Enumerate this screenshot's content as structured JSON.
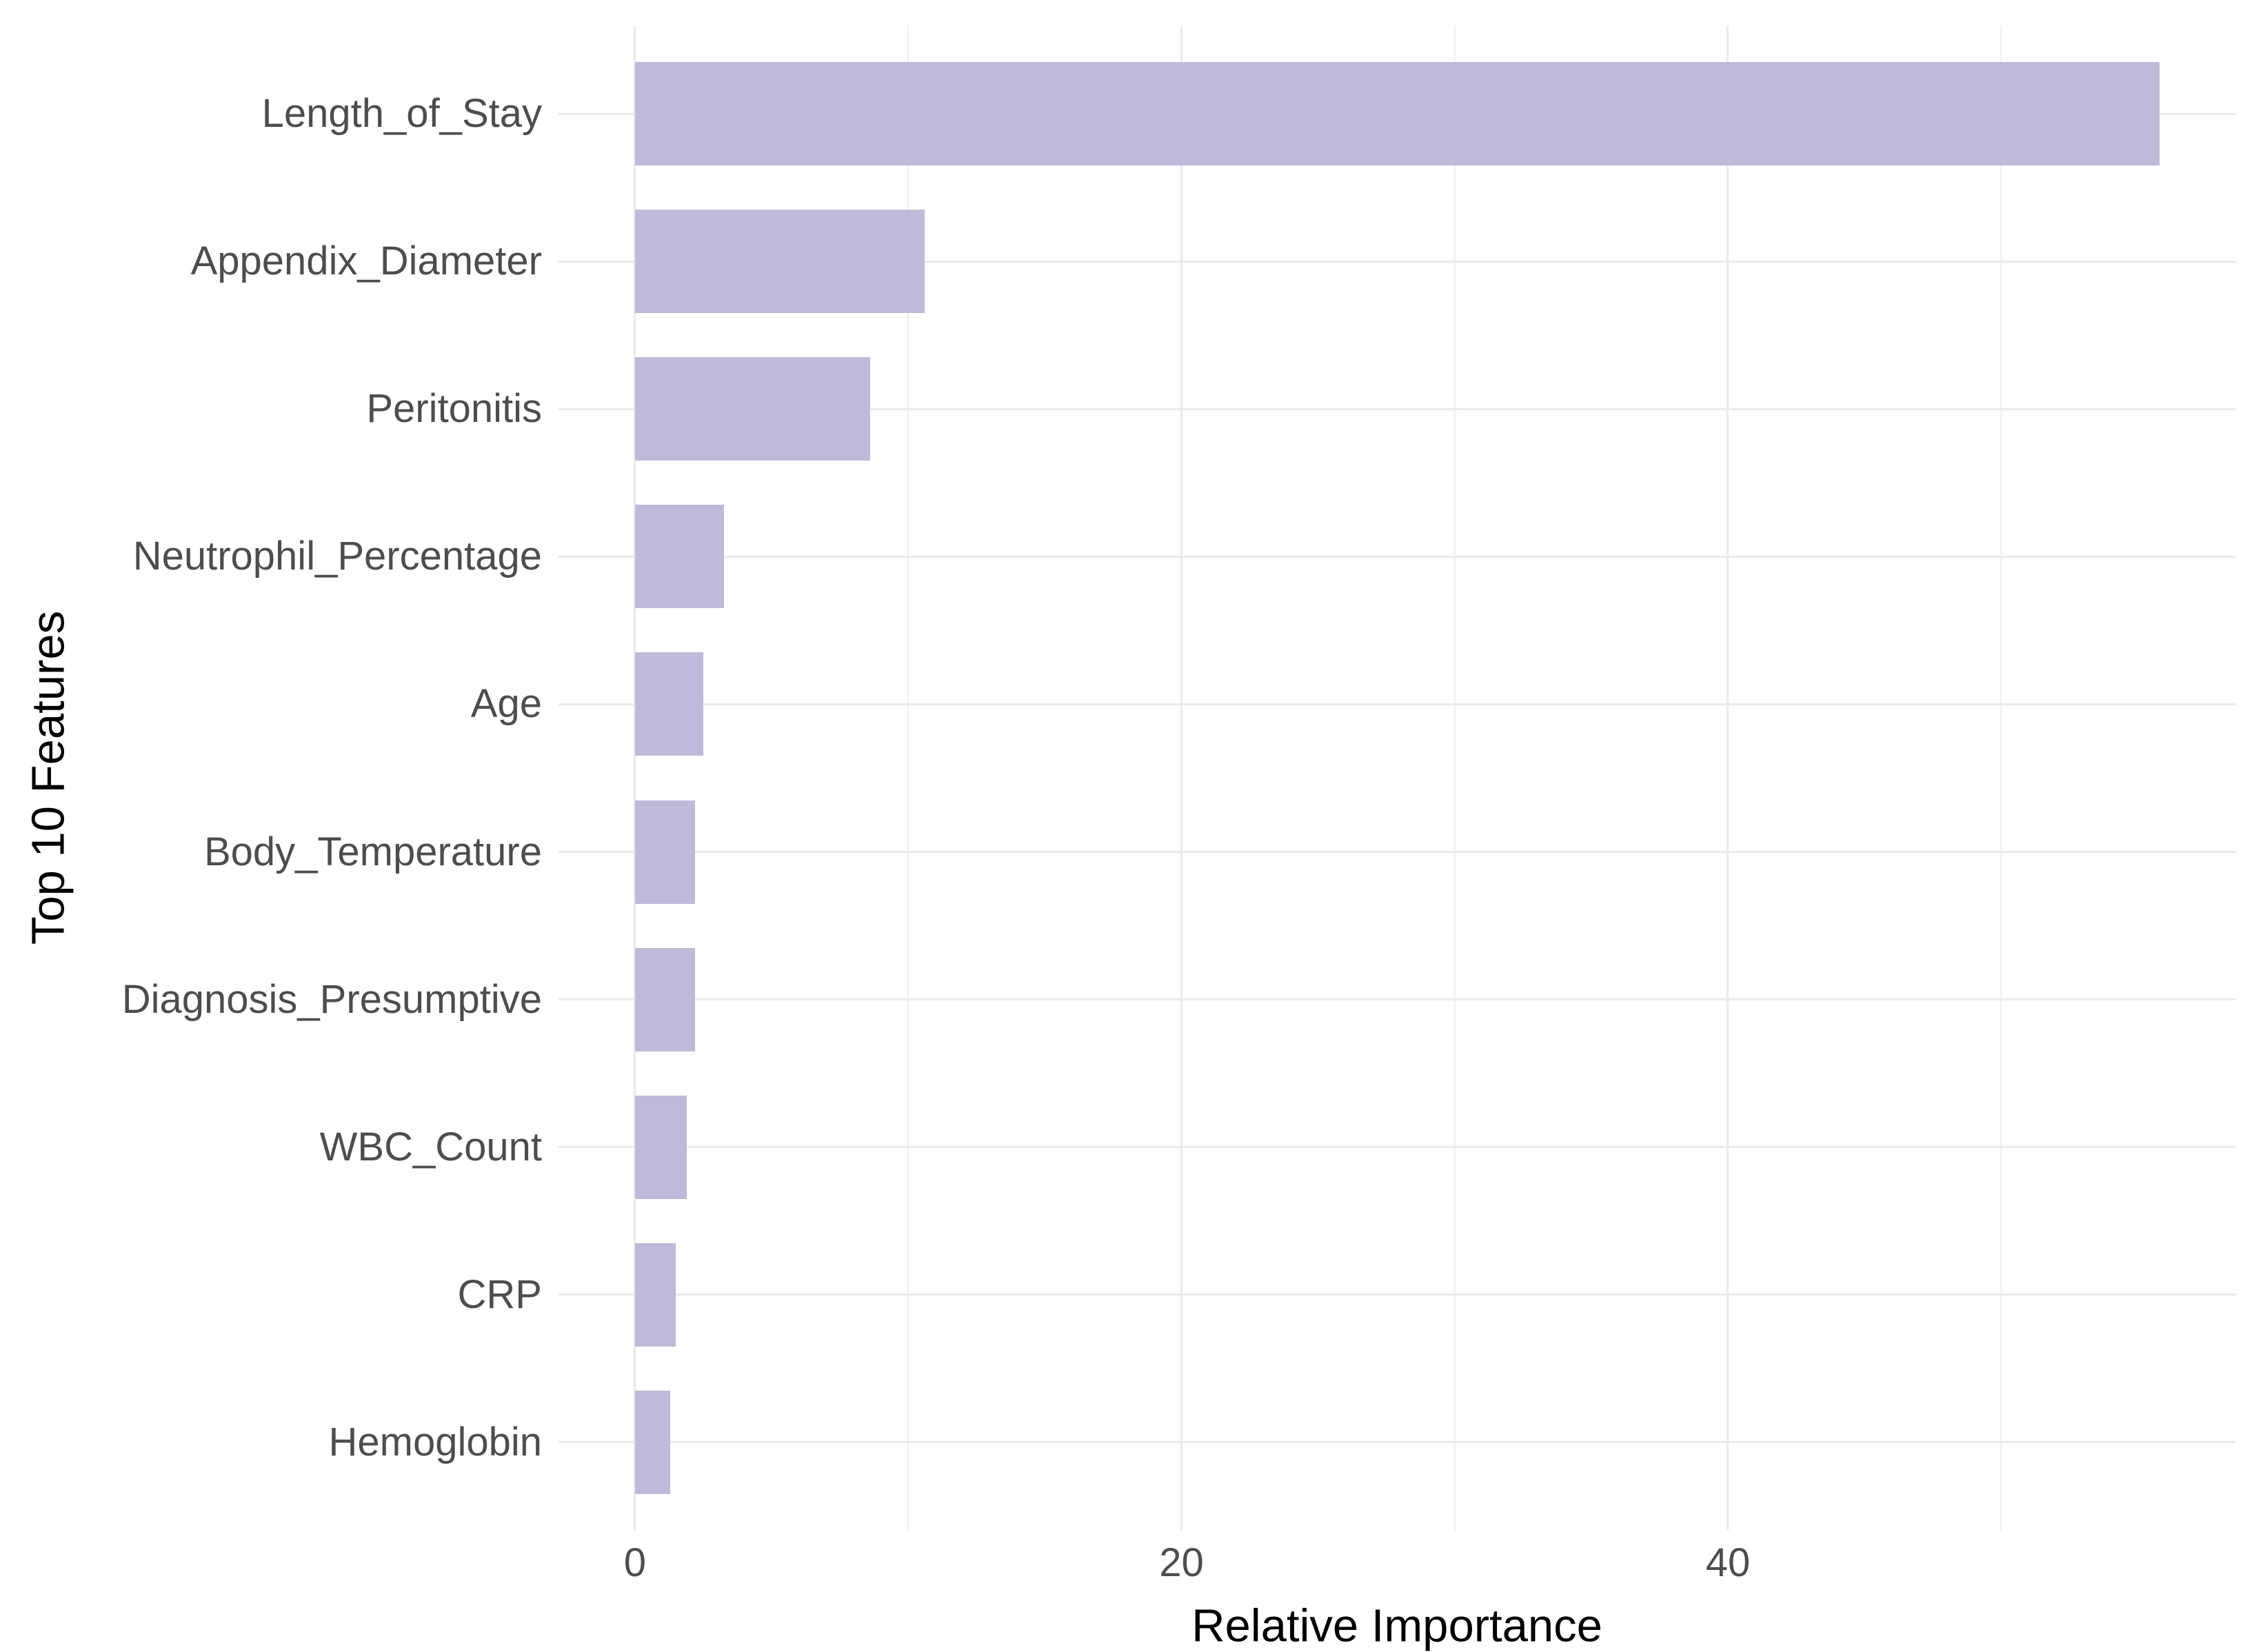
{
  "chart_data": {
    "type": "bar",
    "orientation": "horizontal",
    "title": "",
    "xlabel": "Relative Importance",
    "ylabel": "Top 10 Features",
    "categories": [
      "Length_of_Stay",
      "Appendix_Diameter",
      "Peritonitis",
      "Neutrophil_Percentage",
      "Age",
      "Body_Temperature",
      "Diagnosis_Presumptive",
      "WBC_Count",
      "CRP",
      "Hemoglobin"
    ],
    "values": [
      55.8,
      10.6,
      8.6,
      3.25,
      2.5,
      2.2,
      2.2,
      1.9,
      1.5,
      1.3
    ],
    "x_tick_labels": [
      "0",
      "20",
      "40"
    ],
    "x_ticks": [
      0,
      20,
      40
    ],
    "x_minor_gridlines": [
      10,
      30,
      50
    ],
    "xlim": [
      -2.8,
      58.6
    ],
    "grid": true,
    "legend": false,
    "colors": {
      "bar": "#bebada",
      "gridline_major": "#ebebeb",
      "gridline_minor": "#f0f0f0",
      "axis_text": "#4d4d4d",
      "axis_title": "#000000",
      "background": "#ffffff"
    }
  }
}
